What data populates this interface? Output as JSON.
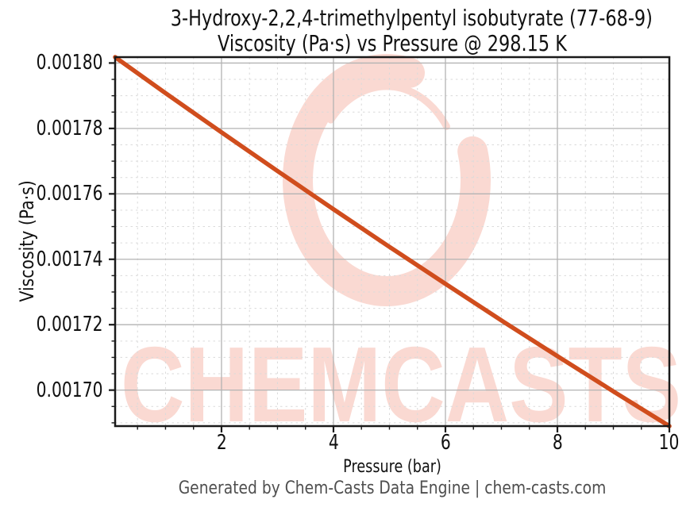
{
  "title": {
    "line1": "3-Hydroxy-2,2,4-trimethylpentyl isobutyrate (77-68-9)",
    "line2": "Viscosity (Pa·s) vs Pressure @ 298.15 K"
  },
  "x_axis": {
    "label": "Pressure (bar)",
    "tick_labels": [
      "2",
      "4",
      "6",
      "8",
      "10"
    ],
    "tick_values": [
      2,
      4,
      6,
      8,
      10
    ],
    "minor_step": 0.5,
    "min": 0.1,
    "max": 10
  },
  "y_axis": {
    "label": "Viscosity (Pa·s)",
    "tick_labels": [
      "0.00180",
      "0.00178",
      "0.00176",
      "0.00174",
      "0.00172",
      "0.00170"
    ],
    "tick_values": [
      0.0018,
      0.00178,
      0.00176,
      0.00174,
      0.00172,
      0.0017
    ],
    "minor_step": 5e-06,
    "min": 0.001689,
    "max": 0.0018018
  },
  "footer": "Generated by Chem-Casts Data Engine | chem-casts.com",
  "watermark": {
    "text": "CHEMCASTS"
  },
  "colors": {
    "line": "#d04d1d",
    "watermark": "#fad9d2",
    "grid_major": "#b3b3b3",
    "grid_minor": "#dadada",
    "spine": "#1a1a1a",
    "footer_text": "#4f4f4f"
  },
  "chart_data": {
    "type": "line",
    "title": "3-Hydroxy-2,2,4-trimethylpentyl isobutyrate (77-68-9) — Viscosity (Pa·s) vs Pressure @ 298.15 K",
    "xlabel": "Pressure (bar)",
    "ylabel": "Viscosity (Pa·s)",
    "x": [
      0.1,
      1,
      2,
      3,
      4,
      5,
      6,
      7,
      8,
      9,
      10
    ],
    "series": [
      {
        "name": "Viscosity (Pa·s)",
        "values": [
          0.0018018,
          0.0017908,
          0.0017788,
          0.001767,
          0.0017553,
          0.0017438,
          0.0017325,
          0.0017213,
          0.0017104,
          0.0016996,
          0.001689
        ]
      }
    ],
    "xlim": [
      0.1,
      10
    ],
    "ylim": [
      0.001689,
      0.0018018
    ],
    "grid": true,
    "minor_grid": true,
    "legend_position": "none"
  }
}
